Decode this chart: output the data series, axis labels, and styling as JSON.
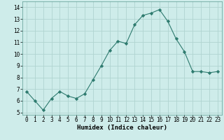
{
  "x": [
    0,
    1,
    2,
    3,
    4,
    5,
    6,
    7,
    8,
    9,
    10,
    11,
    12,
    13,
    14,
    15,
    16,
    17,
    18,
    19,
    20,
    21,
    22,
    23
  ],
  "y": [
    6.8,
    6.0,
    5.2,
    6.2,
    6.8,
    6.4,
    6.2,
    6.6,
    7.8,
    9.0,
    10.3,
    11.1,
    10.9,
    12.5,
    13.3,
    13.5,
    13.8,
    12.8,
    11.3,
    10.2,
    8.5,
    8.5,
    8.4,
    8.5
  ],
  "line_color": "#2d7a6e",
  "marker": "D",
  "marker_size": 2.2,
  "bg_color": "#ceecea",
  "grid_color": "#b0d4d0",
  "xlabel": "Humidex (Indice chaleur)",
  "xlim": [
    -0.5,
    23.5
  ],
  "ylim": [
    4.8,
    14.5
  ],
  "yticks": [
    5,
    6,
    7,
    8,
    9,
    10,
    11,
    12,
    13,
    14
  ],
  "xticks": [
    0,
    1,
    2,
    3,
    4,
    5,
    6,
    7,
    8,
    9,
    10,
    11,
    12,
    13,
    14,
    15,
    16,
    17,
    18,
    19,
    20,
    21,
    22,
    23
  ],
  "tick_fontsize": 5.5,
  "xlabel_fontsize": 6.5
}
